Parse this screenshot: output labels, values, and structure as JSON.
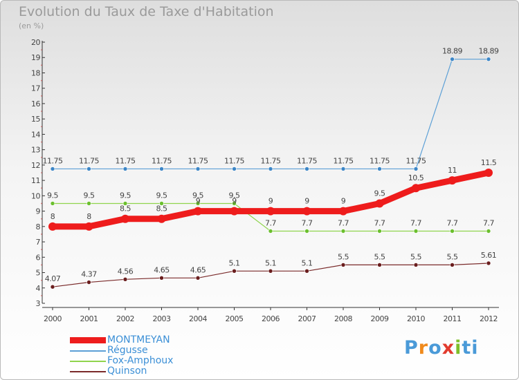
{
  "title": "Evolution du Taux de Taxe d'Habitation",
  "unit_label": "(en %)",
  "logo": {
    "text": "Proxiti",
    "letter_colors": [
      "#4a9ad8",
      "#f08a1c",
      "#4a9ad8",
      "#e23b2e",
      "#7fbf2a",
      "#4a9ad8",
      "#4a9ad8"
    ]
  },
  "chart_data": {
    "type": "line",
    "x": [
      "2000",
      "2001",
      "2002",
      "2003",
      "2004",
      "2005",
      "2006",
      "2007",
      "2008",
      "2009",
      "2010",
      "2011",
      "2012"
    ],
    "ylim": [
      3,
      20
    ],
    "yticks": [
      "3",
      "4",
      "5",
      "6",
      "7",
      "8",
      "9",
      "10",
      "11",
      "12",
      "13",
      "14",
      "15",
      "16",
      "17",
      "18",
      "19",
      "20"
    ],
    "grid": false,
    "legend_position": "bottom-left",
    "series": [
      {
        "name": "MONTMEYAN",
        "color": "#ee1c1c",
        "emphasis": true,
        "values": [
          8,
          8,
          8.5,
          8.5,
          9,
          9,
          9,
          9,
          9,
          9.5,
          10.5,
          11,
          11.5
        ],
        "labels": [
          "8",
          "8",
          "8.5",
          "8.5",
          "9",
          "9",
          "9",
          "9",
          "9",
          "9.5",
          "10.5",
          "11",
          "11.5"
        ]
      },
      {
        "name": "Régusse",
        "color": "#5b9fd6",
        "marker": "#3d86c6",
        "values": [
          11.75,
          11.75,
          11.75,
          11.75,
          11.75,
          11.75,
          11.75,
          11.75,
          11.75,
          11.75,
          11.75,
          18.89,
          18.89
        ],
        "labels": [
          "11.75",
          "11.75",
          "11.75",
          "11.75",
          "11.75",
          "11.75",
          "11.75",
          "11.75",
          "11.75",
          "11.75",
          "11.75",
          "18.89",
          "18.89"
        ]
      },
      {
        "name": "Fox-Amphoux",
        "color": "#8fd44c",
        "marker": "#6bbf2e",
        "values": [
          9.5,
          9.5,
          9.5,
          9.5,
          9.5,
          9.5,
          7.7,
          7.7,
          7.7,
          7.7,
          7.7,
          7.7,
          7.7
        ],
        "labels": [
          "9.5",
          "9.5",
          "9.5",
          "9.5",
          "9.5",
          "9.5",
          "7.7",
          "7.7",
          "7.7",
          "7.7",
          "7.7",
          "7.7",
          "7.7"
        ]
      },
      {
        "name": "Quinson",
        "color": "#7a2a2a",
        "marker": "#6a1e1e",
        "values": [
          4.07,
          4.37,
          4.56,
          4.65,
          4.65,
          5.1,
          5.1,
          5.1,
          5.5,
          5.5,
          5.5,
          5.5,
          5.61
        ],
        "labels": [
          "4.07",
          "4.37",
          "4.56",
          "4.65",
          "4.65",
          "5.1",
          "5.1",
          "5.1",
          "5.5",
          "5.5",
          "5.5",
          "5.5",
          "5.61"
        ]
      }
    ]
  }
}
